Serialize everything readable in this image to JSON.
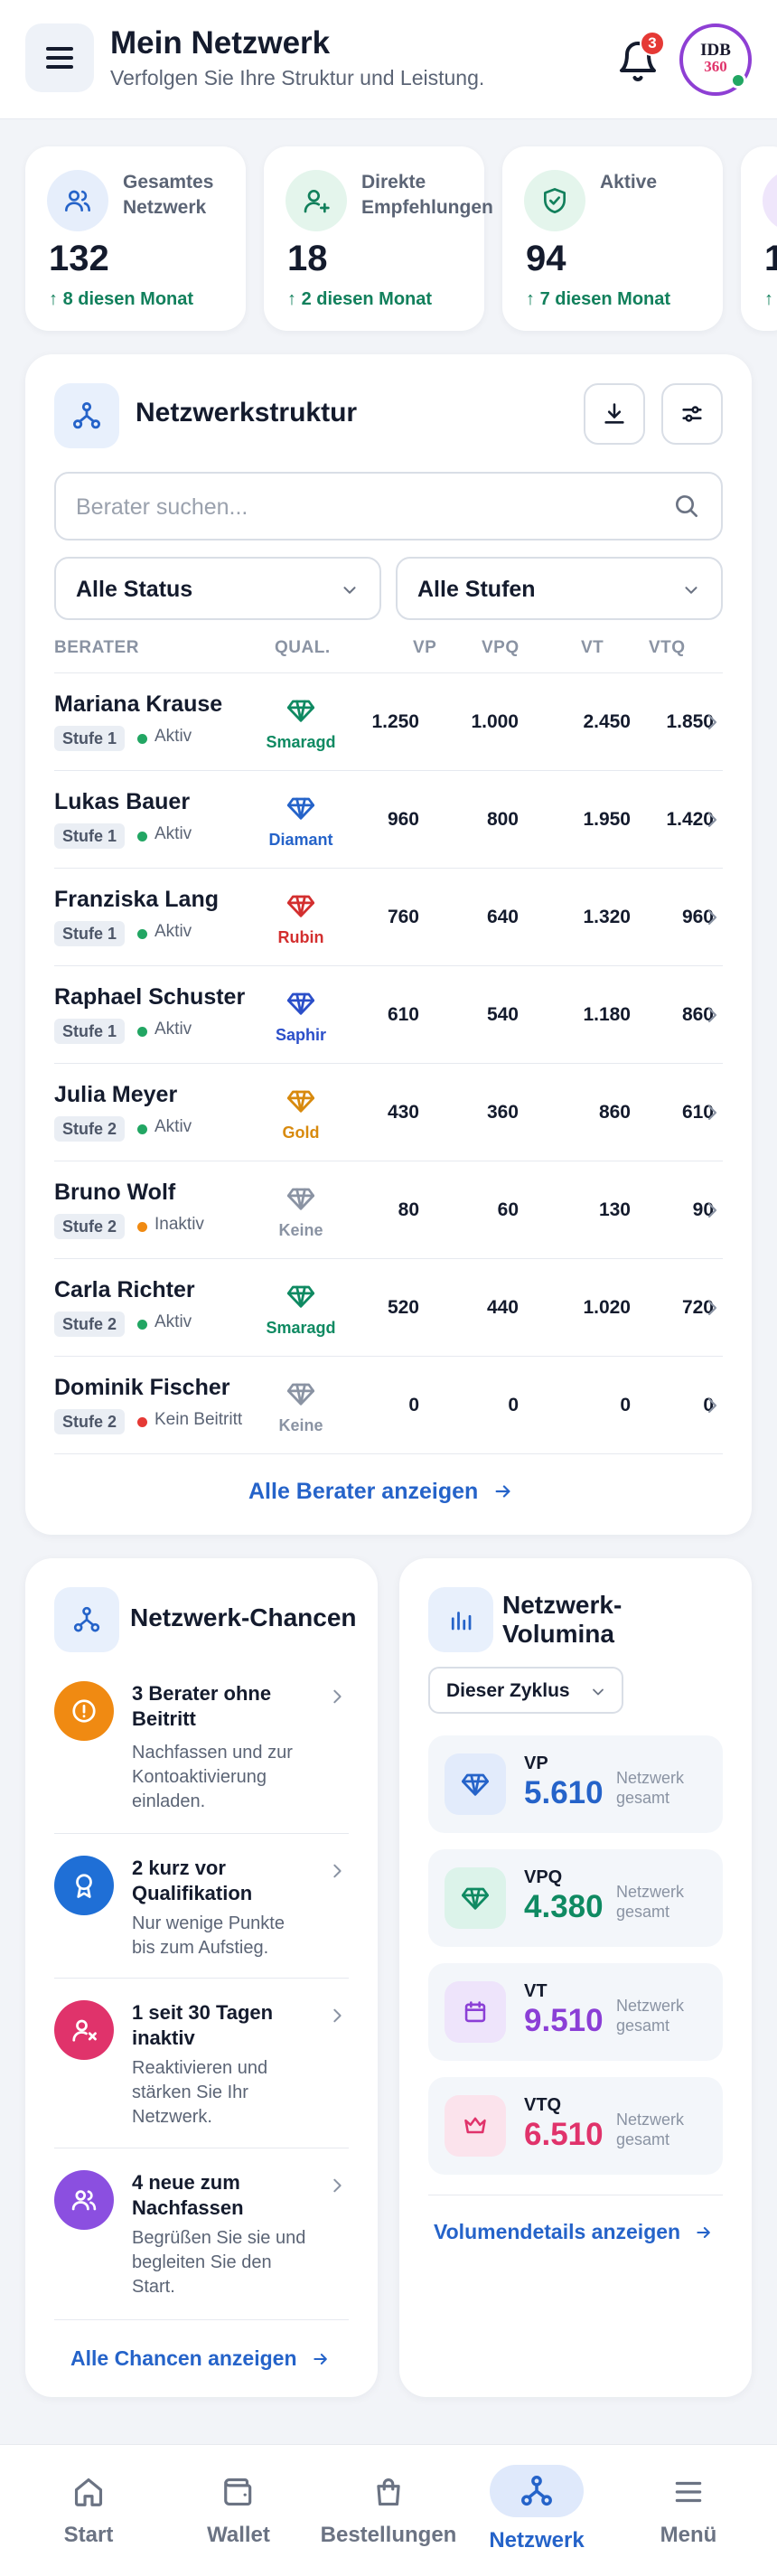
{
  "header": {
    "title": "Mein Netzwerk",
    "subtitle": "Verfolgen Sie Ihre Struktur und Leistung.",
    "notification_count": "3",
    "avatar_line1": "IDB",
    "avatar_line2": "360"
  },
  "stats": [
    {
      "label_line1": "Gesamtes",
      "label_line2": "Netzwerk",
      "value": "132",
      "delta": "8 diesen Monat"
    },
    {
      "label_line1": "Direkte",
      "label_line2": "Empfehlungen",
      "value": "18",
      "delta": "2 diesen Monat"
    },
    {
      "label_line1": "Aktive",
      "label_line2": "",
      "value": "94",
      "delta": "7 diesen Monat"
    },
    {
      "label_line1": "",
      "label_line2": "",
      "value": "1",
      "delta": ""
    }
  ],
  "structure": {
    "title": "Netzwerkstruktur",
    "search_placeholder": "Berater suchen...",
    "filter_status": "Alle Status",
    "filter_level": "Alle Stufen",
    "columns": {
      "berater": "BERATER",
      "qual": "QUAL.",
      "vp": "VP",
      "vpq": "VPQ",
      "vt": "VT",
      "vtq": "VTQ"
    },
    "rows": [
      {
        "name": "Mariana Krause",
        "level": "Stufe 1",
        "status": "Aktiv",
        "qual": "Smaragd",
        "vp": "1.250",
        "vpq": "1.000",
        "vt": "2.450",
        "vtq": "1.850"
      },
      {
        "name": "Lukas Bauer",
        "level": "Stufe 1",
        "status": "Aktiv",
        "qual": "Diamant",
        "vp": "960",
        "vpq": "800",
        "vt": "1.950",
        "vtq": "1.420"
      },
      {
        "name": "Franziska Lang",
        "level": "Stufe 1",
        "status": "Aktiv",
        "qual": "Rubin",
        "vp": "760",
        "vpq": "640",
        "vt": "1.320",
        "vtq": "960"
      },
      {
        "name": "Raphael Schuster",
        "level": "Stufe 1",
        "status": "Aktiv",
        "qual": "Saphir",
        "vp": "610",
        "vpq": "540",
        "vt": "1.180",
        "vtq": "860"
      },
      {
        "name": "Julia Meyer",
        "level": "Stufe 2",
        "status": "Aktiv",
        "qual": "Gold",
        "vp": "430",
        "vpq": "360",
        "vt": "860",
        "vtq": "610"
      },
      {
        "name": "Bruno Wolf",
        "level": "Stufe 2",
        "status": "Inaktiv",
        "qual": "Keine",
        "vp": "80",
        "vpq": "60",
        "vt": "130",
        "vtq": "90"
      },
      {
        "name": "Carla Richter",
        "level": "Stufe 2",
        "status": "Aktiv",
        "qual": "Smaragd",
        "vp": "520",
        "vpq": "440",
        "vt": "1.020",
        "vtq": "720"
      },
      {
        "name": "Dominik Fischer",
        "level": "Stufe 2",
        "status": "Kein Beitritt",
        "qual": "Keine",
        "vp": "0",
        "vpq": "0",
        "vt": "0",
        "vtq": "0"
      }
    ],
    "show_all": "Alle Berater anzeigen"
  },
  "colors": {
    "accent": "#2563c9",
    "aktiv": "#22a663",
    "inaktiv": "#f08a12",
    "kein_beitritt": "#e53935",
    "smaragd": "#0f8a62",
    "diamant": "#2563c9",
    "rubin": "#d32f2f",
    "saphir": "#2b4fc9",
    "gold": "#d88a0e",
    "keine": "#8a93a3"
  },
  "chances": {
    "title": "Netzwerk-Chancen",
    "items": [
      {
        "title_l1": "3 Berater ohne",
        "title_l2": "Beitritt",
        "desc": [
          "Nachfassen und zur",
          "Kontoaktivierung",
          "einladen."
        ]
      },
      {
        "title_l1": "2 kurz vor",
        "title_l2": "Qualifikation",
        "desc": [
          "Nur wenige Punkte",
          "bis zum Aufstieg."
        ]
      },
      {
        "title_l1": "1 seit 30 Tagen",
        "title_l2": "inaktiv",
        "desc": [
          "Reaktivieren und",
          "stärken Sie Ihr",
          "Netzwerk."
        ]
      },
      {
        "title_l1": "4 neue zum",
        "title_l2": "Nachfassen",
        "desc": [
          "Begrüßen Sie sie und",
          "begleiten Sie den",
          "Start."
        ]
      }
    ],
    "show_all": "Alle Chancen anzeigen"
  },
  "volumes": {
    "title_l1": "Netzwerk-",
    "title_l2": "Volumina",
    "cycle": "Dieser Zyklus",
    "items": [
      {
        "label": "VP",
        "value": "5.610",
        "sub_l1": "Netzwerk",
        "sub_l2": "gesamt",
        "color": "#2563c9"
      },
      {
        "label": "VPQ",
        "value": "4.380",
        "sub_l1": "Netzwerk",
        "sub_l2": "gesamt",
        "color": "#0f8a62"
      },
      {
        "label": "VT",
        "value": "9.510",
        "sub_l1": "Netzwerk",
        "sub_l2": "gesamt",
        "color": "#8b3fd6"
      },
      {
        "label": "VTQ",
        "value": "6.510",
        "sub_l1": "Netzwerk",
        "sub_l2": "gesamt",
        "color": "#e0336b"
      }
    ],
    "show_details": "Volumendetails anzeigen"
  },
  "nav": {
    "items": [
      {
        "label": "Start",
        "icon": "home-icon"
      },
      {
        "label": "Wallet",
        "icon": "wallet-icon"
      },
      {
        "label": "Bestellungen",
        "icon": "bag-icon"
      },
      {
        "label": "Netzwerk",
        "icon": "network-icon",
        "active": true
      },
      {
        "label": "Menü",
        "icon": "menu-icon"
      }
    ]
  }
}
